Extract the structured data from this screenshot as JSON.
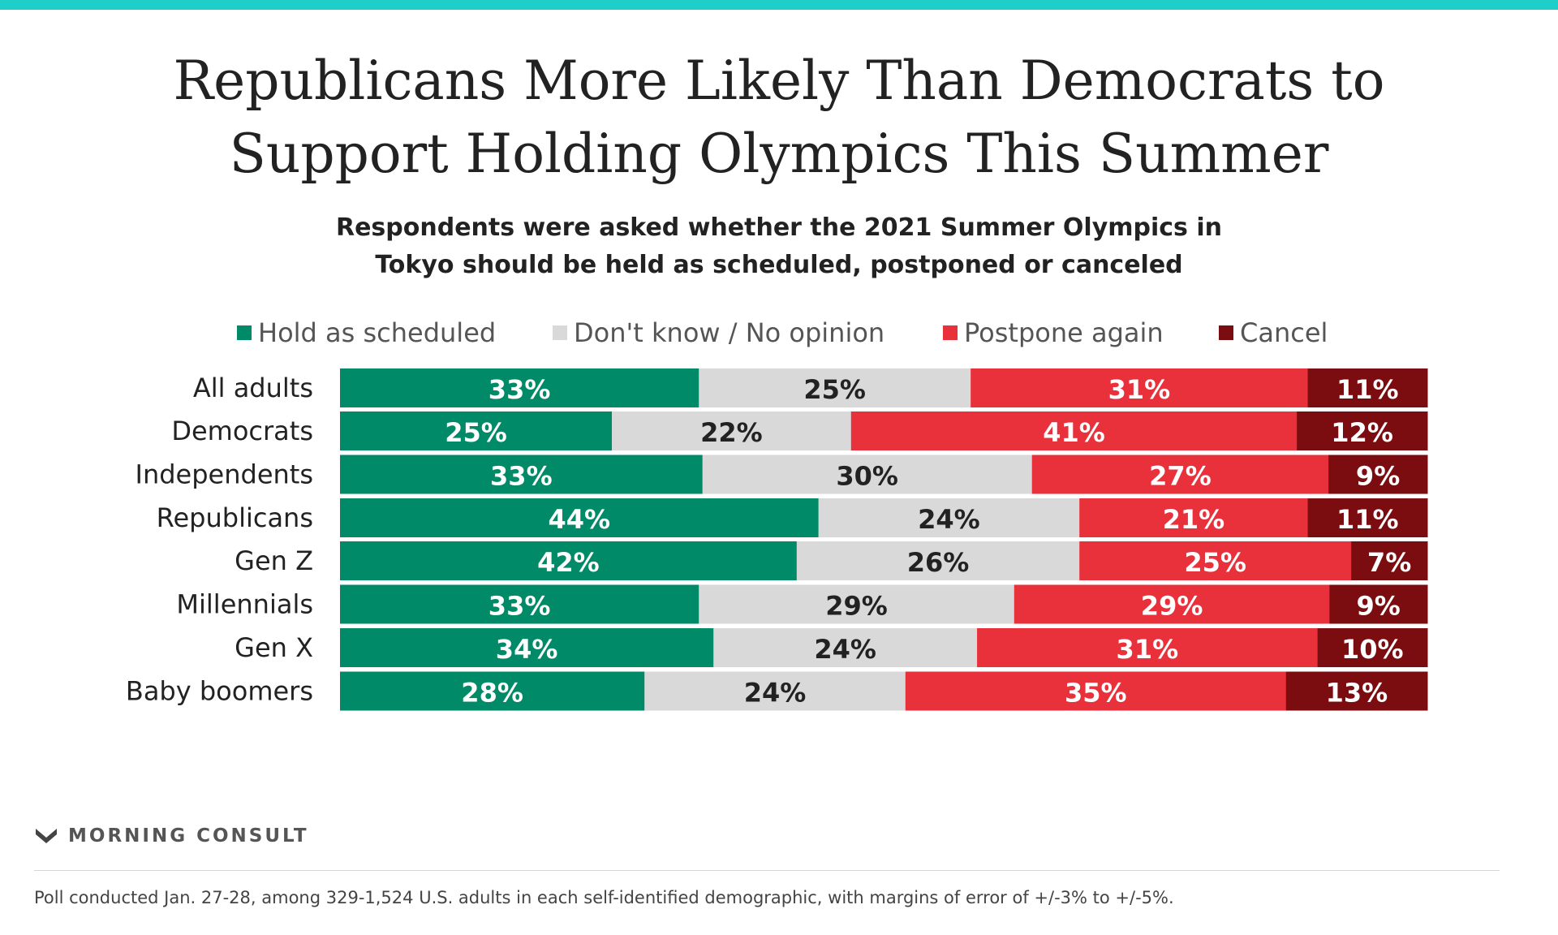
{
  "header": {
    "accent_color": "#1ecfc9",
    "title_lines": [
      "Republicans More Likely Than Democrats to",
      "Support Holding Olympics This Summer"
    ],
    "subtitle_lines": [
      "Respondents were asked whether the 2021 Summer Olympics in",
      "Tokyo should be held as scheduled, postponed or canceled"
    ]
  },
  "chart_data": {
    "type": "bar",
    "orientation": "horizontal",
    "stacked": true,
    "value_unit": "%",
    "legend_position": "top",
    "grid": false,
    "categories": [
      "All adults",
      "Democrats",
      "Independents",
      "Republicans",
      "Gen Z",
      "Millennials",
      "Gen X",
      "Baby boomers"
    ],
    "groups": [
      [
        0
      ],
      [
        1,
        2,
        3
      ],
      [
        4,
        5,
        6,
        7
      ]
    ],
    "series": [
      {
        "name": "Hold as scheduled",
        "color": "#008a67",
        "label_color": "#ffffff",
        "values": [
          33,
          25,
          33,
          44,
          42,
          33,
          34,
          28
        ]
      },
      {
        "name": "Don't know / No opinion",
        "color": "#d9d9d9",
        "label_color": "#222222",
        "values": [
          25,
          22,
          30,
          24,
          26,
          29,
          24,
          24
        ]
      },
      {
        "name": "Postpone again",
        "color": "#e8313a",
        "label_color": "#ffffff",
        "values": [
          31,
          41,
          27,
          21,
          25,
          29,
          31,
          35
        ]
      },
      {
        "name": "Cancel",
        "color": "#7b0c0f",
        "label_color": "#ffffff",
        "values": [
          11,
          12,
          9,
          11,
          7,
          9,
          10,
          13
        ]
      }
    ]
  },
  "brand": {
    "name": "MORNING CONSULT",
    "logo_icon": "morning-consult-m-logo",
    "logo_color": "#444444"
  },
  "footnote": "Poll conducted Jan. 27-28, among 329-1,524 U.S. adults in each self-identified demographic, with margins of error of +/-3% to +/-5%."
}
